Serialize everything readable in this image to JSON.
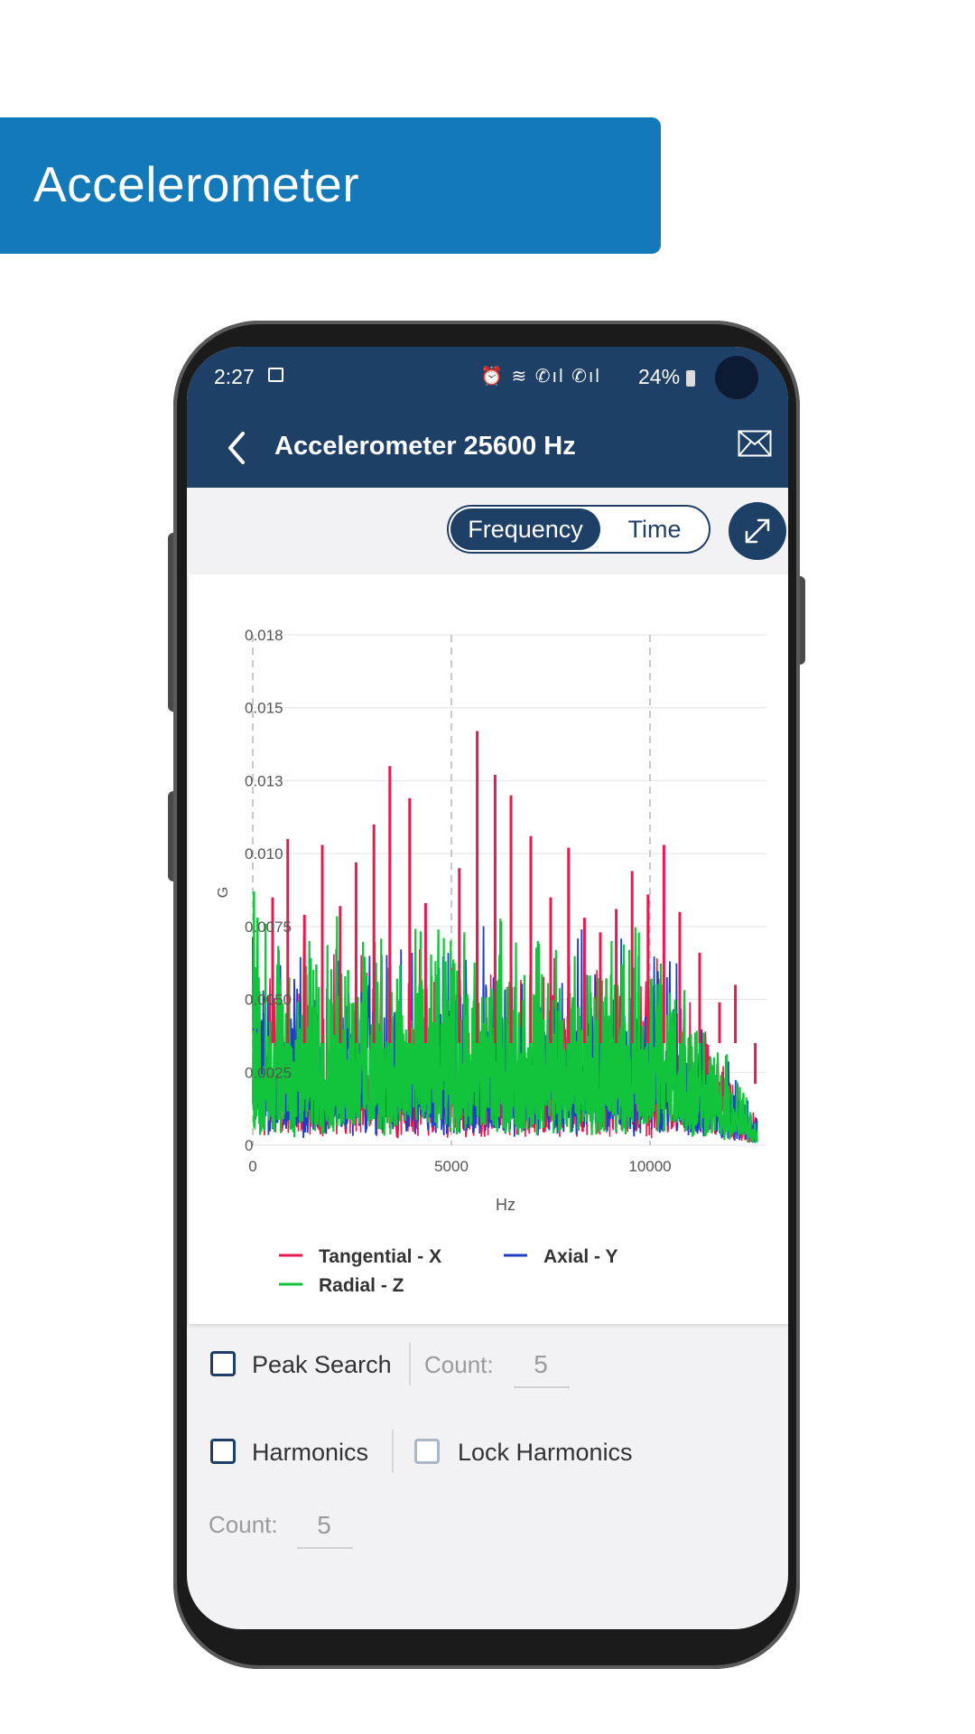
{
  "banner": {
    "title": "Accelerometer"
  },
  "status_bar": {
    "time": "2:27",
    "battery": "24%"
  },
  "app_bar": {
    "title": "Accelerometer 25600 Hz"
  },
  "toggle": {
    "frequency_label": "Frequency",
    "time_label": "Time",
    "selected": "Frequency"
  },
  "chart_data": {
    "type": "line",
    "xlabel": "Hz",
    "ylabel": "G",
    "x_ticks": [
      "0",
      "5000",
      "10000"
    ],
    "y_ticks": [
      "0",
      "0.0025",
      "0.0050",
      "0.0075",
      "0.010",
      "0.013",
      "0.015",
      "0.018"
    ],
    "xlim": [
      0,
      13000
    ],
    "ylim": [
      0,
      0.0175
    ],
    "grid": true,
    "legend_position": "bottom",
    "series": [
      {
        "name": "Tangential - X",
        "color": "#e8194f",
        "peaks": [
          {
            "x": 500,
            "y": 0.0085
          },
          {
            "x": 880,
            "y": 0.0105
          },
          {
            "x": 1300,
            "y": 0.0079
          },
          {
            "x": 1750,
            "y": 0.0103
          },
          {
            "x": 2200,
            "y": 0.0082
          },
          {
            "x": 2600,
            "y": 0.0097
          },
          {
            "x": 3050,
            "y": 0.011
          },
          {
            "x": 3450,
            "y": 0.013
          },
          {
            "x": 3950,
            "y": 0.0119
          },
          {
            "x": 4350,
            "y": 0.0083
          },
          {
            "x": 5200,
            "y": 0.0095
          },
          {
            "x": 5650,
            "y": 0.0077
          },
          {
            "x": 5650,
            "y": 0.0142
          },
          {
            "x": 6100,
            "y": 0.0127
          },
          {
            "x": 6500,
            "y": 0.012
          },
          {
            "x": 7000,
            "y": 0.0106
          },
          {
            "x": 7500,
            "y": 0.0085
          },
          {
            "x": 7950,
            "y": 0.0102
          },
          {
            "x": 8350,
            "y": 0.0078
          },
          {
            "x": 8750,
            "y": 0.0073
          },
          {
            "x": 9150,
            "y": 0.0081
          },
          {
            "x": 9550,
            "y": 0.0094
          },
          {
            "x": 9950,
            "y": 0.0086
          },
          {
            "x": 10350,
            "y": 0.0103
          },
          {
            "x": 10750,
            "y": 0.008
          },
          {
            "x": 11250,
            "y": 0.0066
          },
          {
            "x": 11750,
            "y": 0.0049
          },
          {
            "x": 12150,
            "y": 0.0055
          },
          {
            "x": 12650,
            "y": 0.0021
          }
        ]
      },
      {
        "name": "Axial - Y",
        "color": "#1f3fc4",
        "noise_level": 0.0045
      },
      {
        "name": "Radial - Z",
        "color": "#12c43c",
        "noise_level": 0.0045
      }
    ]
  },
  "options": {
    "peak_search_label": "Peak Search",
    "peak_count_label": "Count:",
    "peak_count_value": "5",
    "harmonics_label": "Harmonics",
    "lock_harmonics_label": "Lock Harmonics",
    "harmonics_count_label": "Count:",
    "harmonics_count_value": "5"
  }
}
